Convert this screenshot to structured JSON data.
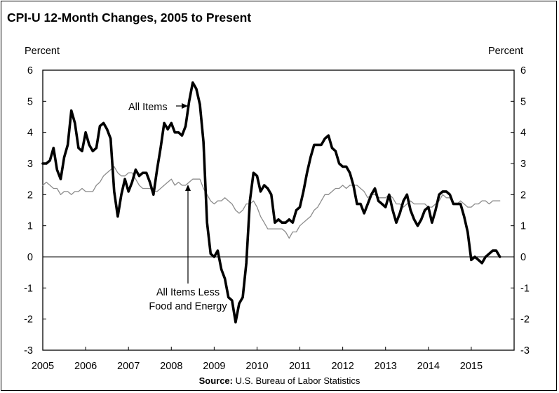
{
  "chart_data": {
    "type": "line",
    "title": "CPI-U 12-Month Changes, 2005 to Present",
    "ylabel_left": "Percent",
    "ylabel_right": "Percent",
    "ylim": [
      -3,
      6
    ],
    "yticks": [
      "6",
      "5",
      "4",
      "3",
      "2",
      "1",
      "0",
      "-1",
      "-2",
      "-3"
    ],
    "xlim": [
      2005.0,
      2016.0
    ],
    "xticks": [
      "2005",
      "2006",
      "2007",
      "2008",
      "2009",
      "2010",
      "2011",
      "2012",
      "2013",
      "2014",
      "2015"
    ],
    "grid": false,
    "series": [
      {
        "name": "All Items",
        "color": "#000000",
        "x": [
          2005.0,
          2005.083,
          2005.167,
          2005.25,
          2005.333,
          2005.417,
          2005.5,
          2005.583,
          2005.667,
          2005.75,
          2005.833,
          2005.917,
          2006.0,
          2006.083,
          2006.167,
          2006.25,
          2006.333,
          2006.417,
          2006.5,
          2006.583,
          2006.667,
          2006.75,
          2006.833,
          2006.917,
          2007.0,
          2007.083,
          2007.167,
          2007.25,
          2007.333,
          2007.417,
          2007.5,
          2007.583,
          2007.667,
          2007.75,
          2007.833,
          2007.917,
          2008.0,
          2008.083,
          2008.167,
          2008.25,
          2008.333,
          2008.417,
          2008.5,
          2008.583,
          2008.667,
          2008.75,
          2008.833,
          2008.917,
          2009.0,
          2009.083,
          2009.167,
          2009.25,
          2009.333,
          2009.417,
          2009.5,
          2009.583,
          2009.667,
          2009.75,
          2009.833,
          2009.917,
          2010.0,
          2010.083,
          2010.167,
          2010.25,
          2010.333,
          2010.417,
          2010.5,
          2010.583,
          2010.667,
          2010.75,
          2010.833,
          2010.917,
          2011.0,
          2011.083,
          2011.167,
          2011.25,
          2011.333,
          2011.417,
          2011.5,
          2011.583,
          2011.667,
          2011.75,
          2011.833,
          2011.917,
          2012.0,
          2012.083,
          2012.167,
          2012.25,
          2012.333,
          2012.417,
          2012.5,
          2012.583,
          2012.667,
          2012.75,
          2012.833,
          2012.917,
          2013.0,
          2013.083,
          2013.167,
          2013.25,
          2013.333,
          2013.417,
          2013.5,
          2013.583,
          2013.667,
          2013.75,
          2013.833,
          2013.917,
          2014.0,
          2014.083,
          2014.167,
          2014.25,
          2014.333,
          2014.417,
          2014.5,
          2014.583,
          2014.667,
          2014.75,
          2014.833,
          2014.917,
          2015.0,
          2015.083,
          2015.167,
          2015.25,
          2015.333,
          2015.417,
          2015.5,
          2015.583,
          2015.667
        ],
        "values": [
          3.0,
          3.0,
          3.1,
          3.5,
          2.8,
          2.5,
          3.2,
          3.6,
          4.7,
          4.3,
          3.5,
          3.4,
          4.0,
          3.6,
          3.4,
          3.5,
          4.2,
          4.3,
          4.1,
          3.8,
          2.1,
          1.3,
          2.0,
          2.5,
          2.1,
          2.4,
          2.8,
          2.6,
          2.7,
          2.7,
          2.4,
          2.0,
          2.8,
          3.5,
          4.3,
          4.1,
          4.3,
          4.0,
          4.0,
          3.9,
          4.2,
          5.0,
          5.6,
          5.4,
          4.9,
          3.7,
          1.1,
          0.1,
          0.0,
          0.2,
          -0.4,
          -0.7,
          -1.3,
          -1.4,
          -2.1,
          -1.5,
          -1.3,
          -0.2,
          1.8,
          2.7,
          2.6,
          2.1,
          2.3,
          2.2,
          2.0,
          1.1,
          1.2,
          1.1,
          1.1,
          1.2,
          1.1,
          1.5,
          1.6,
          2.1,
          2.7,
          3.2,
          3.6,
          3.6,
          3.6,
          3.8,
          3.9,
          3.5,
          3.4,
          3.0,
          2.9,
          2.9,
          2.7,
          2.3,
          1.7,
          1.7,
          1.4,
          1.7,
          2.0,
          2.2,
          1.8,
          1.7,
          1.6,
          2.0,
          1.5,
          1.1,
          1.4,
          1.8,
          2.0,
          1.5,
          1.2,
          1.0,
          1.2,
          1.5,
          1.6,
          1.1,
          1.5,
          2.0,
          2.1,
          2.1,
          2.0,
          1.7,
          1.7,
          1.7,
          1.3,
          0.8,
          -0.1,
          0.0,
          -0.1,
          -0.2,
          0.0,
          0.1,
          0.2,
          0.2,
          0.0
        ]
      },
      {
        "name": "All Items Less Food and Energy",
        "color": "#8c8c8c",
        "x": [
          2005.0,
          2005.083,
          2005.167,
          2005.25,
          2005.333,
          2005.417,
          2005.5,
          2005.583,
          2005.667,
          2005.75,
          2005.833,
          2005.917,
          2006.0,
          2006.083,
          2006.167,
          2006.25,
          2006.333,
          2006.417,
          2006.5,
          2006.583,
          2006.667,
          2006.75,
          2006.833,
          2006.917,
          2007.0,
          2007.083,
          2007.167,
          2007.25,
          2007.333,
          2007.417,
          2007.5,
          2007.583,
          2007.667,
          2007.75,
          2007.833,
          2007.917,
          2008.0,
          2008.083,
          2008.167,
          2008.25,
          2008.333,
          2008.417,
          2008.5,
          2008.583,
          2008.667,
          2008.75,
          2008.833,
          2008.917,
          2009.0,
          2009.083,
          2009.167,
          2009.25,
          2009.333,
          2009.417,
          2009.5,
          2009.583,
          2009.667,
          2009.75,
          2009.833,
          2009.917,
          2010.0,
          2010.083,
          2010.167,
          2010.25,
          2010.333,
          2010.417,
          2010.5,
          2010.583,
          2010.667,
          2010.75,
          2010.833,
          2010.917,
          2011.0,
          2011.083,
          2011.167,
          2011.25,
          2011.333,
          2011.417,
          2011.5,
          2011.583,
          2011.667,
          2011.75,
          2011.833,
          2011.917,
          2012.0,
          2012.083,
          2012.167,
          2012.25,
          2012.333,
          2012.417,
          2012.5,
          2012.583,
          2012.667,
          2012.75,
          2012.833,
          2012.917,
          2013.0,
          2013.083,
          2013.167,
          2013.25,
          2013.333,
          2013.417,
          2013.5,
          2013.583,
          2013.667,
          2013.75,
          2013.833,
          2013.917,
          2014.0,
          2014.083,
          2014.167,
          2014.25,
          2014.333,
          2014.417,
          2014.5,
          2014.583,
          2014.667,
          2014.75,
          2014.833,
          2014.917,
          2015.0,
          2015.083,
          2015.167,
          2015.25,
          2015.333,
          2015.417,
          2015.5,
          2015.583,
          2015.667
        ],
        "values": [
          2.3,
          2.4,
          2.3,
          2.2,
          2.2,
          2.0,
          2.1,
          2.1,
          2.0,
          2.1,
          2.1,
          2.2,
          2.1,
          2.1,
          2.1,
          2.3,
          2.4,
          2.6,
          2.7,
          2.8,
          2.9,
          2.7,
          2.6,
          2.6,
          2.7,
          2.7,
          2.5,
          2.3,
          2.2,
          2.2,
          2.2,
          2.1,
          2.1,
          2.2,
          2.3,
          2.4,
          2.5,
          2.3,
          2.4,
          2.3,
          2.3,
          2.4,
          2.5,
          2.5,
          2.5,
          2.2,
          2.0,
          1.8,
          1.7,
          1.8,
          1.8,
          1.9,
          1.8,
          1.7,
          1.5,
          1.4,
          1.5,
          1.7,
          1.7,
          1.8,
          1.6,
          1.3,
          1.1,
          0.9,
          0.9,
          0.9,
          0.9,
          0.9,
          0.8,
          0.6,
          0.8,
          0.8,
          1.0,
          1.1,
          1.2,
          1.3,
          1.5,
          1.6,
          1.8,
          2.0,
          2.0,
          2.1,
          2.2,
          2.2,
          2.3,
          2.2,
          2.3,
          2.3,
          2.3,
          2.2,
          2.1,
          1.9,
          2.0,
          2.0,
          1.9,
          1.9,
          1.9,
          2.0,
          1.9,
          1.7,
          1.7,
          1.6,
          1.7,
          1.8,
          1.7,
          1.7,
          1.7,
          1.7,
          1.6,
          1.6,
          1.7,
          1.8,
          2.0,
          1.9,
          1.9,
          1.7,
          1.7,
          1.8,
          1.7,
          1.6,
          1.6,
          1.7,
          1.7,
          1.8,
          1.8,
          1.7,
          1.8,
          1.8,
          1.8
        ]
      }
    ],
    "annotations": [
      {
        "text": "All Items"
      },
      {
        "text": "All Items Less"
      },
      {
        "text": "Food and Energy"
      }
    ],
    "source_label": "Source:",
    "source_text": "U.S. Bureau of Labor Statistics"
  }
}
